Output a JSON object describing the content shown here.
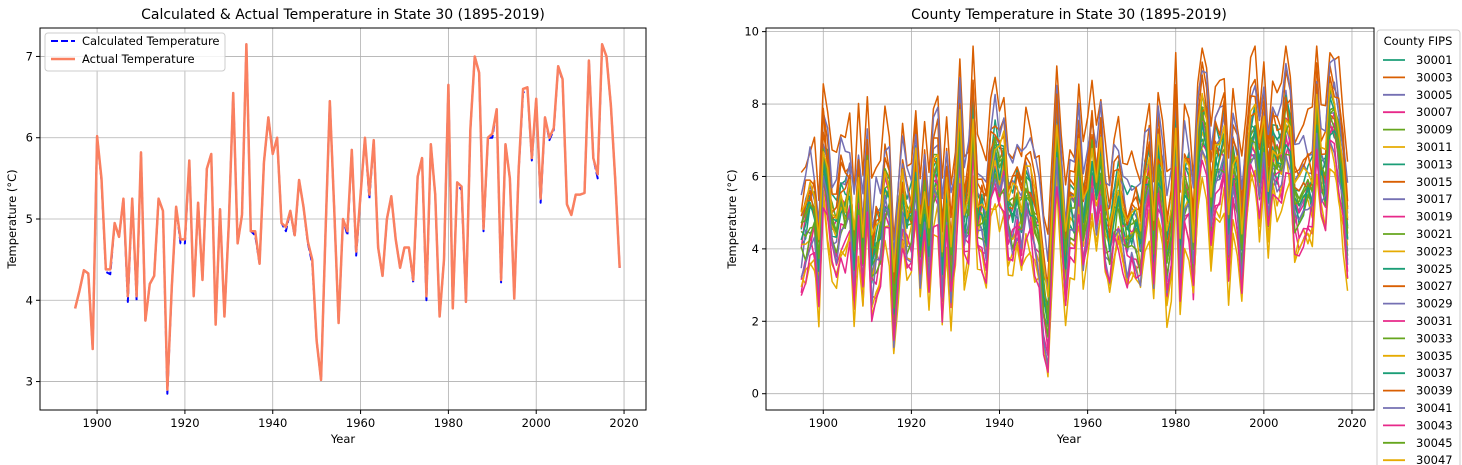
{
  "chart_data": [
    {
      "type": "line",
      "title": "Calculated & Actual Temperature in State 30 (1895-2019)",
      "xlabel": "Year",
      "ylabel": "Temperature (°C)",
      "xlim": [
        1887,
        2025
      ],
      "ylim": [
        2.65,
        7.35
      ],
      "xticks": [
        1900,
        1920,
        1940,
        1960,
        1980,
        2000,
        2020
      ],
      "yticks": [
        3,
        4,
        5,
        6,
        7
      ],
      "grid": true,
      "legend_position": "top-left",
      "x_start": 1895,
      "series": [
        {
          "name": "Calculated Temperature",
          "color": "#0000ff",
          "style": "dashed",
          "values": [
            3.9,
            4.12,
            4.37,
            4.33,
            3.4,
            6.02,
            5.48,
            4.35,
            4.32,
            4.95,
            4.78,
            5.25,
            3.98,
            5.25,
            4.0,
            5.82,
            3.75,
            4.2,
            4.3,
            5.25,
            5.1,
            2.85,
            4.15,
            5.15,
            4.7,
            4.7,
            5.72,
            4.05,
            5.2,
            4.25,
            5.62,
            5.8,
            3.7,
            5.12,
            3.8,
            4.95,
            6.55,
            4.7,
            5.05,
            7.15,
            4.85,
            4.8,
            4.45,
            5.7,
            6.25,
            5.8,
            6.0,
            4.95,
            4.85,
            5.1,
            4.78,
            5.48,
            5.15,
            4.7,
            4.45,
            3.5,
            3.02,
            4.8,
            6.45,
            5.12,
            3.72,
            5.0,
            4.8,
            5.85,
            4.55,
            5.3,
            6.0,
            5.25,
            5.97,
            4.65,
            4.3,
            5.0,
            5.28,
            4.75,
            4.4,
            4.65,
            4.65,
            4.22,
            5.52,
            5.75,
            4.0,
            5.92,
            5.3,
            3.8,
            4.5,
            6.65,
            3.9,
            5.45,
            5.35,
            3.98,
            6.1,
            7.0,
            6.8,
            4.85,
            6.0,
            6.0,
            6.35,
            4.22,
            5.92,
            5.5,
            4.02,
            5.6,
            6.55,
            6.62,
            5.72,
            6.48,
            5.2,
            6.25,
            5.97,
            6.1,
            6.88,
            6.7,
            5.18,
            5.05,
            5.3,
            5.3,
            5.32,
            6.95,
            5.75,
            5.5,
            7.15,
            7.0,
            6.4,
            5.48,
            4.4
          ]
        },
        {
          "name": "Actual Temperature",
          "color": "#fa8060",
          "style": "solid",
          "values": [
            3.9,
            4.12,
            4.37,
            4.33,
            3.4,
            6.02,
            5.5,
            4.38,
            4.38,
            4.95,
            4.78,
            5.25,
            4.05,
            5.25,
            4.05,
            5.82,
            3.75,
            4.2,
            4.3,
            5.25,
            5.1,
            2.9,
            4.15,
            5.15,
            4.75,
            4.75,
            5.72,
            4.05,
            5.2,
            4.25,
            5.62,
            5.8,
            3.7,
            5.12,
            3.8,
            4.95,
            6.55,
            4.7,
            5.05,
            7.15,
            4.85,
            4.85,
            4.45,
            5.7,
            6.25,
            5.8,
            6.0,
            4.95,
            4.9,
            5.1,
            4.8,
            5.48,
            5.15,
            4.72,
            4.5,
            3.5,
            3.02,
            4.8,
            6.45,
            5.12,
            3.72,
            5.0,
            4.85,
            5.85,
            4.6,
            5.3,
            6.0,
            5.3,
            5.97,
            4.65,
            4.3,
            5.0,
            5.28,
            4.75,
            4.4,
            4.65,
            4.65,
            4.25,
            5.52,
            5.75,
            4.05,
            5.92,
            5.3,
            3.8,
            4.5,
            6.65,
            3.9,
            5.45,
            5.4,
            3.98,
            6.1,
            7.0,
            6.8,
            4.88,
            6.0,
            6.05,
            6.35,
            4.25,
            5.92,
            5.5,
            4.02,
            5.6,
            6.6,
            6.62,
            5.75,
            6.48,
            5.25,
            6.25,
            6.0,
            6.12,
            6.88,
            6.72,
            5.18,
            5.05,
            5.3,
            5.3,
            5.32,
            6.95,
            5.75,
            5.55,
            7.15,
            7.0,
            6.4,
            5.48,
            4.4
          ]
        }
      ]
    },
    {
      "type": "line",
      "title": "County Temperature in State 30 (1895-2019)",
      "xlabel": "Year",
      "ylabel": "Temperature (°C)",
      "xlim": [
        1887,
        2025
      ],
      "ylim": [
        -0.45,
        10.1
      ],
      "xticks": [
        1900,
        1920,
        1940,
        1960,
        1980,
        2000,
        2020
      ],
      "yticks": [
        0,
        2,
        4,
        6,
        8,
        10
      ],
      "grid": true,
      "legend_position": "outside-right",
      "legend_title": "County FIPS",
      "x_start": 1895,
      "year_count": 125,
      "common_pattern": [
        5.0,
        5.25,
        5.5,
        5.45,
        4.6,
        6.6,
        6.0,
        5.3,
        5.3,
        5.7,
        5.45,
        5.85,
        4.55,
        5.9,
        4.75,
        6.35,
        4.6,
        4.9,
        5.1,
        6.0,
        5.8,
        3.8,
        4.9,
        5.85,
        5.3,
        5.3,
        6.3,
        4.95,
        5.85,
        4.95,
        6.2,
        6.3,
        4.55,
        5.85,
        4.6,
        5.6,
        6.9,
        5.35,
        5.6,
        7.2,
        5.45,
        5.45,
        5.15,
        6.2,
        6.6,
        6.3,
        6.45,
        5.55,
        5.45,
        5.7,
        5.45,
        5.95,
        5.8,
        5.35,
        5.1,
        4.0,
        3.6,
        5.45,
        6.9,
        5.75,
        4.5,
        5.6,
        5.45,
        6.35,
        5.25,
        5.9,
        6.5,
        5.85,
        6.45,
        5.3,
        5.0,
        5.6,
        5.85,
        5.35,
        5.05,
        5.25,
        5.25,
        5.0,
        5.95,
        6.25,
        4.8,
        6.4,
        5.9,
        4.65,
        5.15,
        7.0,
        4.75,
        6.0,
        5.9,
        4.85,
        6.55,
        7.3,
        7.05,
        5.55,
        6.45,
        6.45,
        6.8,
        5.1,
        6.35,
        6.0,
        4.95,
        6.1,
        6.9,
        7.0,
        6.25,
        6.85,
        5.85,
        6.65,
        6.5,
        6.55,
        7.15,
        6.95,
        5.75,
        5.7,
        5.9,
        5.9,
        5.9,
        7.25,
        6.25,
        6.1,
        7.35,
        7.25,
        6.8,
        6.0,
        5.2
      ],
      "series": [
        {
          "name": "30001",
          "color": "#1b9e77",
          "offset": -0.6,
          "amplitude": 1.15,
          "noise_seed": 1
        },
        {
          "name": "30003",
          "color": "#d95f02",
          "offset": 1.6,
          "amplitude": 1.2,
          "noise_seed": 2
        },
        {
          "name": "30005",
          "color": "#7570b3",
          "offset": -0.8,
          "amplitude": 1.3,
          "noise_seed": 3
        },
        {
          "name": "30007",
          "color": "#e7298a",
          "offset": -0.3,
          "amplitude": 1.1,
          "noise_seed": 4
        },
        {
          "name": "30009",
          "color": "#66a61e",
          "offset": -0.2,
          "amplitude": 1.25,
          "noise_seed": 5
        },
        {
          "name": "30011",
          "color": "#e6ab02",
          "offset": -0.7,
          "amplitude": 1.2,
          "noise_seed": 6
        },
        {
          "name": "30013",
          "color": "#1b9e77",
          "offset": 0.3,
          "amplitude": 1.1,
          "noise_seed": 7
        },
        {
          "name": "30015",
          "color": "#d95f02",
          "offset": 0.6,
          "amplitude": 1.3,
          "noise_seed": 8
        },
        {
          "name": "30017",
          "color": "#7570b3",
          "offset": 0.2,
          "amplitude": 1.2,
          "noise_seed": 9
        },
        {
          "name": "30019",
          "color": "#e7298a",
          "offset": -1.3,
          "amplitude": 1.35,
          "noise_seed": 10
        },
        {
          "name": "30021",
          "color": "#66a61e",
          "offset": -0.4,
          "amplitude": 1.3,
          "noise_seed": 11
        },
        {
          "name": "30023",
          "color": "#e6ab02",
          "offset": -1.6,
          "amplitude": 1.2,
          "noise_seed": 12
        },
        {
          "name": "30025",
          "color": "#1b9e77",
          "offset": -0.1,
          "amplitude": 1.25,
          "noise_seed": 13
        },
        {
          "name": "30027",
          "color": "#d95f02",
          "offset": 0.0,
          "amplitude": 1.15,
          "noise_seed": 14
        },
        {
          "name": "30029",
          "color": "#7570b3",
          "offset": 1.0,
          "amplitude": 1.1,
          "noise_seed": 15
        },
        {
          "name": "30031",
          "color": "#e7298a",
          "offset": -1.0,
          "amplitude": 1.3,
          "noise_seed": 16
        },
        {
          "name": "30033",
          "color": "#66a61e",
          "offset": -0.9,
          "amplitude": 1.25,
          "noise_seed": 17
        },
        {
          "name": "30035",
          "color": "#e6ab02",
          "offset": -1.9,
          "amplitude": 1.2,
          "noise_seed": 18
        },
        {
          "name": "30037",
          "color": "#1b9e77",
          "offset": -0.5,
          "amplitude": 1.15,
          "noise_seed": 19
        },
        {
          "name": "30039",
          "color": "#d95f02",
          "offset": 0.4,
          "amplitude": 1.25,
          "noise_seed": 20
        },
        {
          "name": "30041",
          "color": "#7570b3",
          "offset": -1.1,
          "amplitude": 1.3,
          "noise_seed": 21
        },
        {
          "name": "30043",
          "color": "#e7298a",
          "offset": -1.5,
          "amplitude": 1.25,
          "noise_seed": 22
        },
        {
          "name": "30045",
          "color": "#66a61e",
          "offset": -0.3,
          "amplitude": 1.2,
          "noise_seed": 23
        },
        {
          "name": "30047",
          "color": "#e6ab02",
          "offset": 0.1,
          "amplitude": 1.15,
          "noise_seed": 24
        }
      ]
    }
  ]
}
